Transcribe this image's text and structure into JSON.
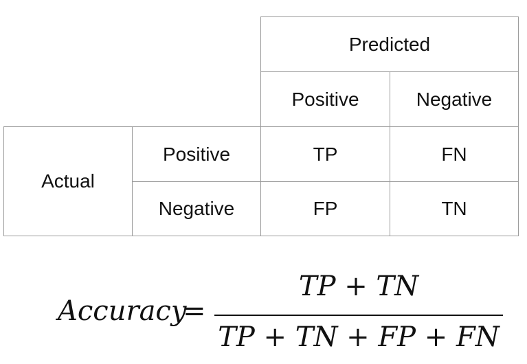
{
  "matrix": {
    "predicted_header": "Predicted",
    "predicted_positive": "Positive",
    "predicted_negative": "Negative",
    "actual_header": "Actual",
    "actual_positive": "Positive",
    "actual_negative": "Negative",
    "tp": "TP",
    "fn": "FN",
    "fp": "FP",
    "tn": "TN"
  },
  "formula": {
    "lhs": "Accuracy",
    "equals": "=",
    "numerator": "TP + TN",
    "denominator": "TP + TN + FP + FN"
  }
}
